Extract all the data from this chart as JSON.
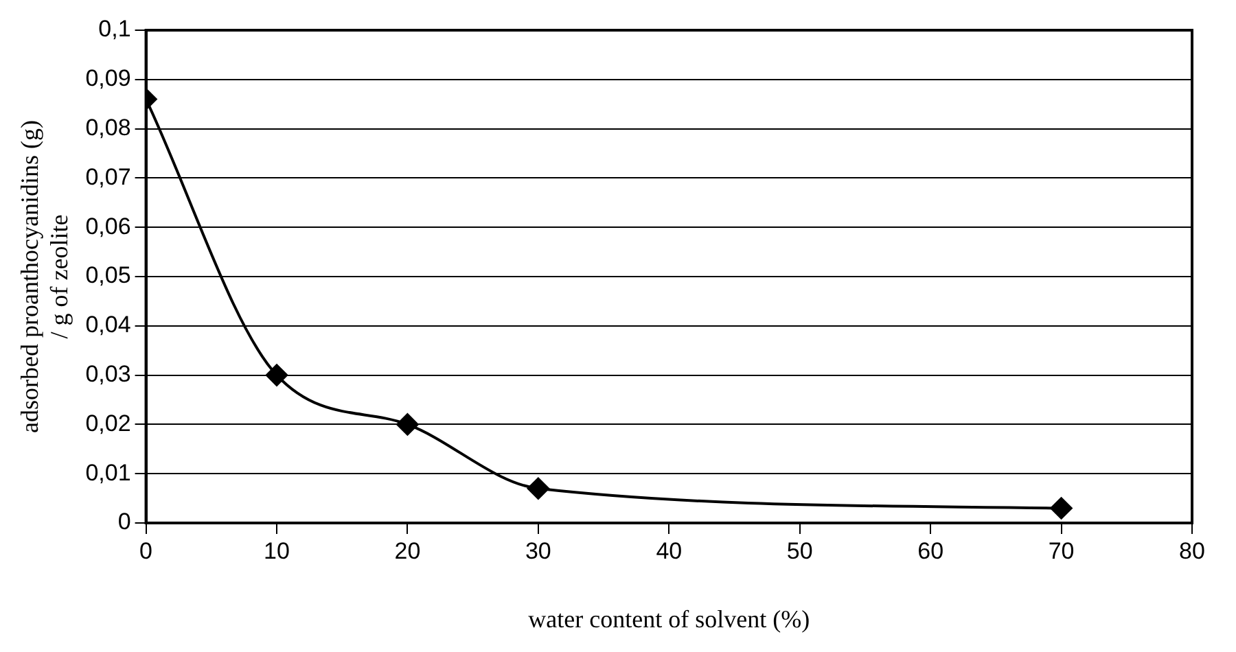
{
  "chart_data": {
    "type": "line",
    "xlabel": "water content of solvent (%)",
    "ylabel": "adsorbed proanthocyanidins (g)\n/ g of zeolite",
    "x": [
      0,
      10,
      20,
      30,
      70
    ],
    "series": [
      {
        "color": "#000000",
        "values": [
          0.086,
          0.03,
          0.02,
          0.007,
          0.003
        ]
      }
    ],
    "xlim": [
      0,
      80
    ],
    "xticks": [
      0,
      10,
      20,
      30,
      40,
      50,
      60,
      70,
      80
    ],
    "ylim": [
      0,
      0.1
    ],
    "yticks": [
      0,
      {
        "value": 0.01,
        "label": "0,01"
      },
      {
        "value": 0.02,
        "label": "0,02"
      },
      {
        "value": 0.03,
        "label": "0,03"
      },
      {
        "value": 0.04,
        "label": "0,04"
      },
      {
        "value": 0.05,
        "label": "0,05"
      },
      {
        "value": 0.06,
        "label": "0,06"
      },
      {
        "value": 0.07,
        "label": "0,07"
      },
      {
        "value": 0.08,
        "label": "0,08"
      },
      {
        "value": 0.09,
        "label": "0,09"
      },
      {
        "value": 0.1,
        "label": "0,1"
      }
    ],
    "grid": "y",
    "legend": false,
    "marker": "diamond",
    "line_style": "solid"
  }
}
